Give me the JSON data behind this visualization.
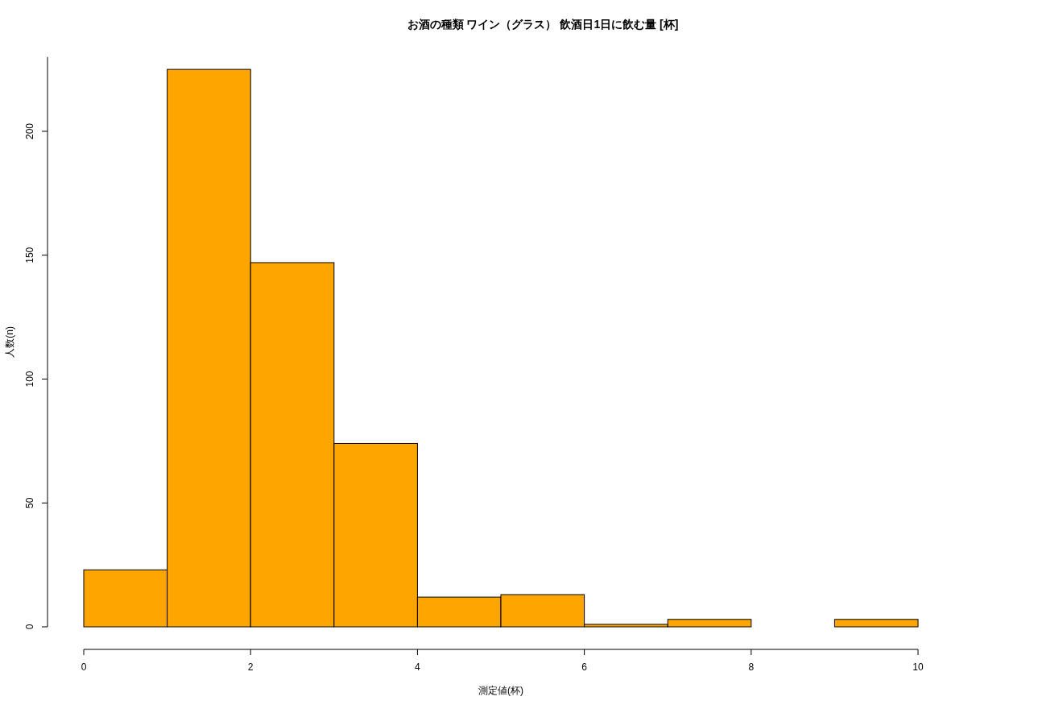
{
  "chart_data": {
    "type": "histogram",
    "title": "お酒の種類 ワイン（グラス） 飲酒日1日に飲む量 [杯]",
    "xlabel": "測定値(杯)",
    "ylabel": "人数(n)",
    "bins": [
      0,
      1,
      2,
      3,
      4,
      5,
      6,
      7,
      8,
      9,
      10
    ],
    "values": [
      23,
      225,
      147,
      74,
      12,
      13,
      1,
      3,
      0,
      3
    ],
    "color": "#ffa500",
    "xlim": [
      0,
      10
    ],
    "ylim": [
      0,
      230
    ],
    "xticks": [
      0,
      2,
      4,
      6,
      8,
      10
    ],
    "yticks": [
      0,
      50,
      100,
      150,
      200
    ],
    "grid": false
  }
}
